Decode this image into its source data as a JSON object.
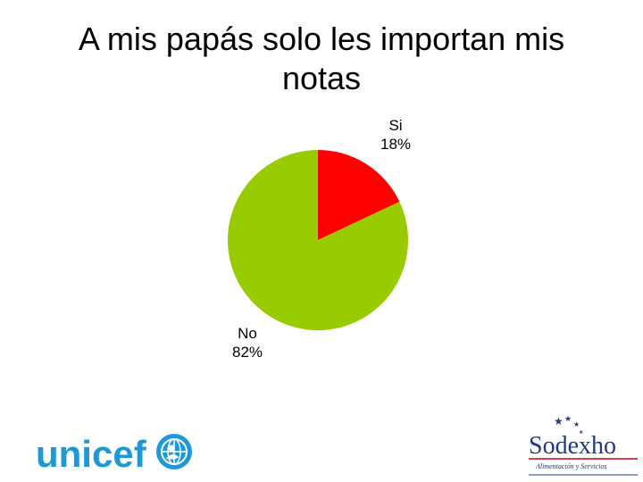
{
  "chart_data": {
    "type": "pie",
    "title": "A mis papás solo les importan mis notas",
    "categories": [
      "Si",
      "No"
    ],
    "values": [
      18,
      82
    ],
    "value_labels": [
      "18%",
      "82%"
    ],
    "colors": [
      "#ff0000",
      "#99cc00"
    ],
    "start_angle_deg": 0,
    "direction": "clockwise",
    "legend": "none"
  },
  "logos": {
    "unicef": {
      "text": "unicef",
      "color": "#1d9ad6",
      "icon": "unicef-emblem-icon"
    },
    "sodexho": {
      "text": "Sodexho",
      "tagline": "Alimentación y Servicios",
      "color": "#1f3a80",
      "accent": "#c0001a",
      "icon": "stars-icon"
    }
  }
}
